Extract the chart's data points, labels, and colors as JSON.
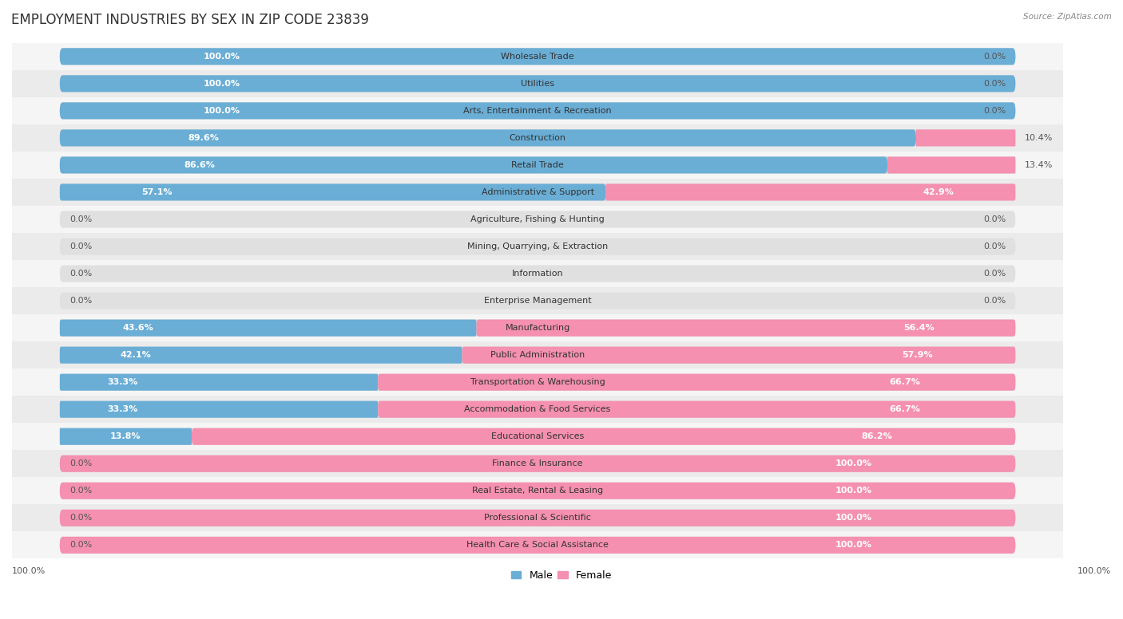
{
  "title": "EMPLOYMENT INDUSTRIES BY SEX IN ZIP CODE 23839",
  "source": "Source: ZipAtlas.com",
  "categories": [
    "Wholesale Trade",
    "Utilities",
    "Arts, Entertainment & Recreation",
    "Construction",
    "Retail Trade",
    "Administrative & Support",
    "Agriculture, Fishing & Hunting",
    "Mining, Quarrying, & Extraction",
    "Information",
    "Enterprise Management",
    "Manufacturing",
    "Public Administration",
    "Transportation & Warehousing",
    "Accommodation & Food Services",
    "Educational Services",
    "Finance & Insurance",
    "Real Estate, Rental & Leasing",
    "Professional & Scientific",
    "Health Care & Social Assistance"
  ],
  "male": [
    100.0,
    100.0,
    100.0,
    89.6,
    86.6,
    57.1,
    0.0,
    0.0,
    0.0,
    0.0,
    43.6,
    42.1,
    33.3,
    33.3,
    13.8,
    0.0,
    0.0,
    0.0,
    0.0
  ],
  "female": [
    0.0,
    0.0,
    0.0,
    10.4,
    13.4,
    42.9,
    0.0,
    0.0,
    0.0,
    0.0,
    56.4,
    57.9,
    66.7,
    66.7,
    86.2,
    100.0,
    100.0,
    100.0,
    100.0
  ],
  "male_color": "#6aaed6",
  "female_color": "#f590b0",
  "male_label_color_inside": "#ffffff",
  "male_label_color_outside": "#555555",
  "female_label_color": "#555555",
  "bg_color": "#f0f0f0",
  "bar_bg_color": "#e0e0e0",
  "row_bg_even": "#f5f5f5",
  "row_bg_odd": "#ebebeb",
  "title_fontsize": 12,
  "label_fontsize": 8,
  "cat_fontsize": 8,
  "bar_height": 0.62,
  "figsize": [
    14.06,
    7.76
  ]
}
